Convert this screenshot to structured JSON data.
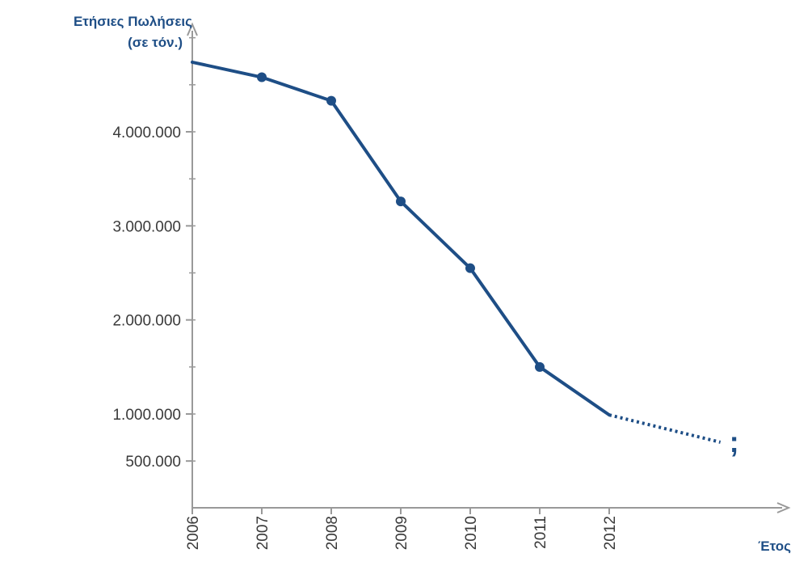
{
  "chart_data": {
    "type": "line",
    "ylabel_lines": [
      "Ετήσιες Πωλήσεις",
      "(σε τόν.)"
    ],
    "xlabel": "Έτος",
    "categories": [
      "2006",
      "2007",
      "2008",
      "2009",
      "2010",
      "2011",
      "2012"
    ],
    "x_tick_labels": [
      "2006",
      "2007",
      "2008",
      "2009",
      "2010",
      "2011",
      "2012"
    ],
    "y_tick_labels": [
      {
        "value": 500000,
        "label": "500.000"
      },
      {
        "value": 1000000,
        "label": "1.000.000"
      },
      {
        "value": 2000000,
        "label": "2.000.000"
      },
      {
        "value": 3000000,
        "label": "3.000.000"
      },
      {
        "value": 4000000,
        "label": "4.000.000"
      }
    ],
    "ylim": [
      0,
      5400000
    ],
    "series": [
      {
        "values": [
          4740000,
          4580000,
          4330000,
          3260000,
          2550000,
          1500000,
          990000
        ],
        "markers": [
          false,
          true,
          true,
          true,
          true,
          true,
          false
        ]
      }
    ],
    "projection": {
      "x": 2013.6,
      "value": 700000,
      "label": ";"
    },
    "colors": {
      "line": "#1e4e86",
      "axis": "#999999",
      "text": "#3a3a3a"
    },
    "grid": false
  }
}
